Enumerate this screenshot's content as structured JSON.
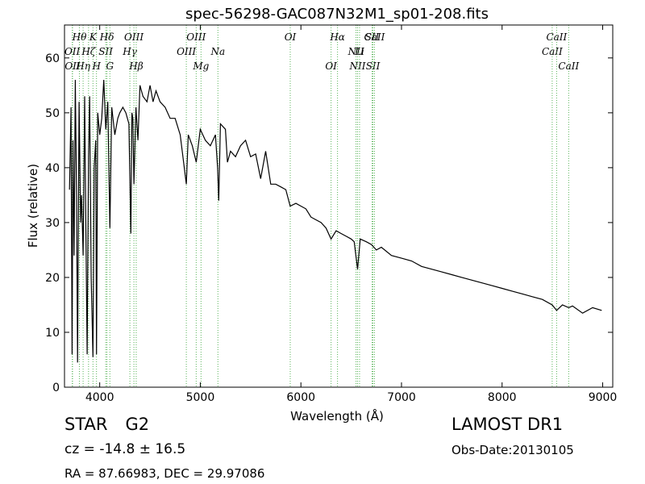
{
  "chart_data": {
    "type": "line",
    "title": "spec-56298-GAC087N32M1_sp01-208.fits",
    "xlabel": "Wavelength (Å)",
    "ylabel": "Flux (relative)",
    "xlim": [
      3650,
      9100
    ],
    "ylim": [
      0,
      66
    ],
    "xticks": [
      4000,
      5000,
      6000,
      7000,
      8000,
      9000
    ],
    "yticks": [
      0,
      10,
      20,
      30,
      40,
      50,
      60
    ],
    "grid": false,
    "series": [
      {
        "color": "#000000",
        "x": [
          3700,
          3715,
          3725,
          3734,
          3745,
          3757,
          3770,
          3780,
          3795,
          3810,
          3820,
          3835,
          3850,
          3862,
          3875,
          3889,
          3900,
          3915,
          3933,
          3945,
          3960,
          3968,
          3980,
          4000,
          4020,
          4040,
          4060,
          4080,
          4101,
          4120,
          4150,
          4180,
          4200,
          4230,
          4260,
          4290,
          4310,
          4320,
          4330,
          4340,
          4360,
          4380,
          4400,
          4430,
          4470,
          4500,
          4530,
          4560,
          4600,
          4650,
          4700,
          4750,
          4800,
          4861,
          4880,
          4920,
          4960,
          5000,
          5050,
          5100,
          5150,
          5172,
          5183,
          5200,
          5250,
          5270,
          5300,
          5350,
          5400,
          5450,
          5500,
          5550,
          5600,
          5650,
          5700,
          5750,
          5800,
          5850,
          5893,
          5950,
          6000,
          6050,
          6100,
          6150,
          6200,
          6250,
          6300,
          6350,
          6400,
          6450,
          6500,
          6530,
          6563,
          6590,
          6650,
          6700,
          6750,
          6800,
          6900,
          7000,
          7100,
          7200,
          7300,
          7400,
          7500,
          7600,
          7700,
          7800,
          7900,
          8000,
          8100,
          8200,
          8300,
          8400,
          8498,
          8542,
          8600,
          8662,
          8700,
          8800,
          8900,
          8990
        ],
        "y": [
          36,
          51,
          6,
          45,
          24,
          56,
          34,
          4.5,
          52,
          30,
          35,
          24,
          53,
          29,
          6,
          42,
          53,
          20,
          5.5,
          40,
          45,
          6,
          50,
          46,
          49,
          56,
          47,
          52,
          29,
          51,
          46,
          49,
          50,
          51,
          50,
          48,
          28,
          50,
          49,
          37,
          51,
          45,
          55,
          53,
          52,
          55,
          52,
          54,
          52,
          51,
          49,
          49,
          46,
          37,
          46,
          44,
          41,
          47,
          45,
          44,
          46,
          40,
          34,
          48,
          47,
          41,
          43,
          42,
          44,
          45,
          42,
          42.5,
          38,
          43,
          37,
          37,
          36.5,
          36,
          33,
          33.5,
          33,
          32.5,
          31,
          30.5,
          30,
          29,
          27,
          28.5,
          28,
          27.5,
          27,
          26.5,
          21.5,
          27,
          26.5,
          26,
          25,
          25.5,
          24,
          23.5,
          23,
          22,
          21.5,
          21,
          20.5,
          20,
          19.5,
          19,
          18.5,
          18,
          17.5,
          17,
          16.5,
          16,
          15,
          14,
          15,
          14.5,
          14.8,
          13.5,
          14.5,
          14
        ]
      }
    ],
    "line_groups": [
      {
        "color": "#5ab45a",
        "lines": [
          {
            "x": 3727,
            "label": "OII",
            "row": 1
          },
          {
            "x": 3730,
            "label": "OII",
            "row": 2
          },
          {
            "x": 3798,
            "label": "Hθ",
            "row": 0
          },
          {
            "x": 3835,
            "label": "Hη",
            "row": 2
          },
          {
            "x": 3889,
            "label": "Hζ",
            "row": 1
          },
          {
            "x": 3933,
            "label": "K",
            "row": 0
          },
          {
            "x": 3968,
            "label": "H",
            "row": 2
          },
          {
            "x": 4060,
            "label": "SII",
            "row": 1
          },
          {
            "x": 4072,
            "label": "Hδ",
            "row": 0
          },
          {
            "x": 4101,
            "label": "G",
            "row": 2
          },
          {
            "x": 4300,
            "label": "Hγ",
            "row": 1
          },
          {
            "x": 4340,
            "label": "OIII",
            "row": 0
          },
          {
            "x": 4363,
            "label": "Hβ",
            "row": 2
          },
          {
            "x": 4861,
            "label": "OIII",
            "row": 1
          },
          {
            "x": 4959,
            "label": "OIII",
            "row": 0
          },
          {
            "x": 5007,
            "label": "Mg",
            "row": 2
          },
          {
            "x": 5175,
            "label": "Na",
            "row": 1
          },
          {
            "x": 5894,
            "label": "OI",
            "row": 0
          },
          {
            "x": 6300,
            "label": "OI",
            "row": 2
          },
          {
            "x": 6364,
            "label": "Hα",
            "row": 0
          },
          {
            "x": 6548,
            "label": "NII",
            "row": 1
          },
          {
            "x": 6563,
            "label": "NII",
            "row": 2
          },
          {
            "x": 6583,
            "label": "Li",
            "row": 1
          },
          {
            "x": 6708,
            "label": "SII",
            "row": 0
          },
          {
            "x": 6716,
            "label": "SII",
            "row": 2
          },
          {
            "x": 6731,
            "label": "CaII",
            "row": 0
          },
          {
            "x": 8498,
            "label": "CaII",
            "row": 1
          },
          {
            "x": 8542,
            "label": "CaII",
            "row": 0
          },
          {
            "x": 8662,
            "label": "CaII",
            "row": 2
          }
        ]
      }
    ]
  },
  "footer": {
    "class": "STAR",
    "subclass": "G2",
    "redshift": "cz = -14.8 ± 16.5",
    "coords": "RA = 87.66983, DEC = 29.97086",
    "survey": "LAMOST DR1",
    "obs_date": "Obs-Date:20130105"
  }
}
